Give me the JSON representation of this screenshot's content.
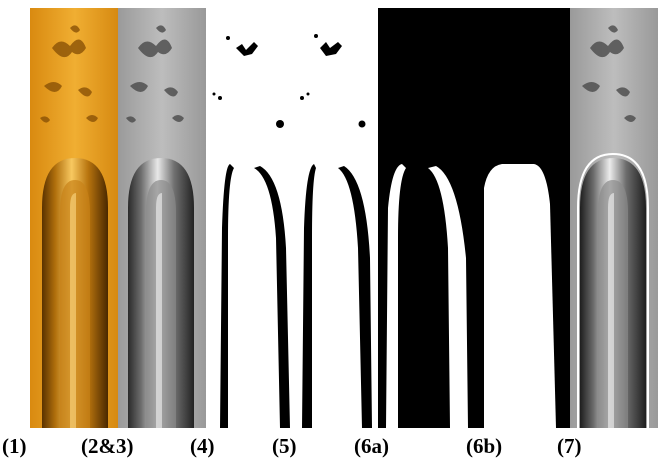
{
  "figure": {
    "panel_labels": [
      "(1)",
      "(2&3)",
      "(4)",
      "(5)",
      "(6a)",
      "(6b)",
      "(7)"
    ]
  },
  "colors": {
    "amber": "#e8a020",
    "gray": "#a9a9a9",
    "binary_black": "#000000",
    "binary_white": "#ffffff"
  }
}
